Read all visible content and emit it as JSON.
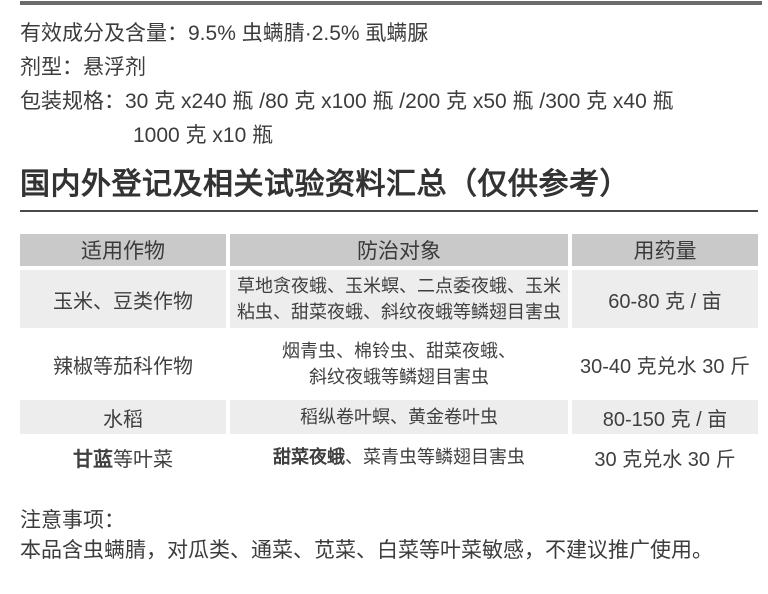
{
  "info": {
    "active_ingredient": "有效成分及含量：9.5% 虫螨腈·2.5% 虱螨脲",
    "formulation": "剂型：悬浮剂",
    "packaging": "包装规格：30 克 x240 瓶 /80 克 x100 瓶 /200 克 x50 瓶 /300 克 x40 瓶",
    "packaging_cont": "1000 克 x10 瓶"
  },
  "section_title": "国内外登记及相关试验资料汇总（仅供参考）",
  "table": {
    "headers": [
      "适用作物",
      "防治对象",
      "用药量"
    ],
    "rows": [
      {
        "crop": "玉米、豆类作物",
        "targets": [
          "草地贪夜蛾、玉米螟、二点委夜蛾、玉米",
          "粘虫、甜菜夜蛾、斜纹夜蛾等鳞翅目害虫"
        ],
        "dosage": "60-80 克 / 亩"
      },
      {
        "crop": "辣椒等茄科作物",
        "targets": [
          "烟青虫、棉铃虫、甜菜夜蛾、",
          "斜纹夜蛾等鳞翅目害虫"
        ],
        "dosage": "30-40 克兑水 30 斤"
      },
      {
        "crop": "水稻",
        "targets": [
          "稻纵卷叶螟、黄金卷叶虫"
        ],
        "dosage": "80-150 克 / 亩"
      },
      {
        "crop_bold": "甘蓝",
        "crop_rest": "等叶菜",
        "target_bold": "甜菜夜蛾",
        "target_rest": "、菜青虫等鳞翅目害虫",
        "dosage": "30 克兑水 30 斤"
      }
    ]
  },
  "notes": {
    "title": "注意事项：",
    "body": "本品含虫螨腈，对瓜类、通菜、苋菜、白菜等叶菜敏感，不建议推广使用。"
  },
  "colors": {
    "top_bar": "#6b6b6b",
    "title_rule": "#4a4a4a",
    "table_header_bg": "#c9c9c9",
    "table_row_alt_bg": "#ededed",
    "text": "#3a3a3a"
  }
}
